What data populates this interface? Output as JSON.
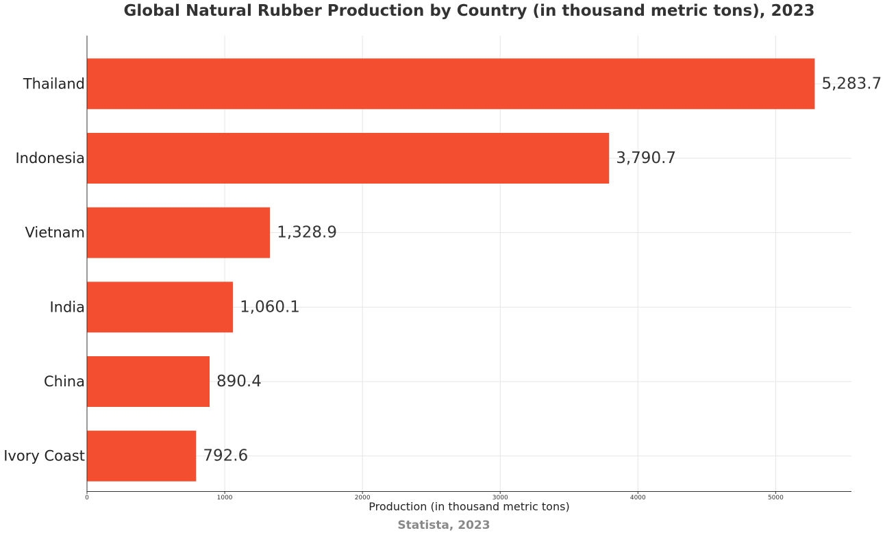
{
  "chart_data": {
    "type": "bar",
    "orientation": "horizontal",
    "title": "Global Natural Rubber Production by Country (in thousand metric tons), 2023",
    "xlabel": "Production (in thousand metric tons)",
    "ylabel": "",
    "source": "Statista, 2023",
    "categories": [
      "Thailand",
      "Indonesia",
      "Vietnam",
      "India",
      "China",
      "Ivory Coast"
    ],
    "values": [
      5283.7,
      3790.7,
      1328.9,
      1060.1,
      890.4,
      792.6
    ],
    "value_labels": [
      "5,283.7",
      "3,790.7",
      "1,328.9",
      "1,060.1",
      "890.4",
      "792.6"
    ],
    "xlim": [
      0,
      5550
    ],
    "xticks": [
      0,
      1000,
      2000,
      3000,
      4000,
      5000
    ],
    "grid": true,
    "bar_color": "#F24E2F"
  }
}
